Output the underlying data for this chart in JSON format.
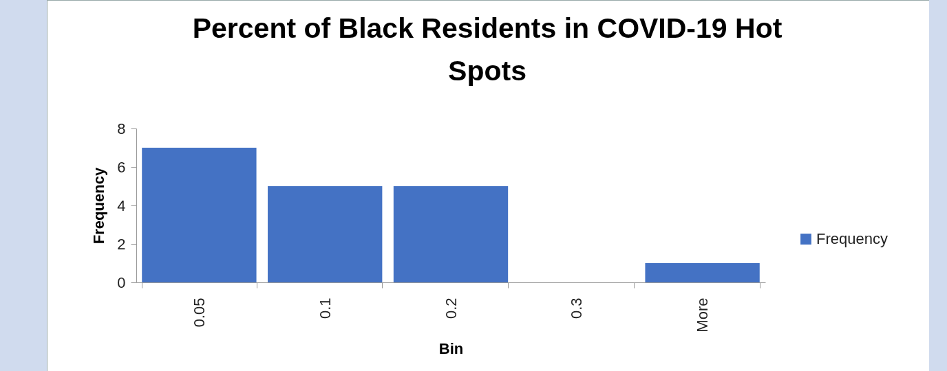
{
  "chart_data": {
    "type": "bar",
    "title": "Percent of Black Residents in COVID-19 Hot Spots",
    "xlabel": "Bin",
    "ylabel": "Frequency",
    "categories": [
      "0.05",
      "0.1",
      "0.2",
      "0.3",
      "More"
    ],
    "series": [
      {
        "name": "Frequency",
        "color": "#4472c4",
        "values": [
          7,
          5,
          5,
          0,
          1
        ]
      }
    ],
    "ylim": [
      0,
      8
    ],
    "yticks": [
      0,
      2,
      4,
      6,
      8
    ],
    "grid": false,
    "legend": "right"
  }
}
